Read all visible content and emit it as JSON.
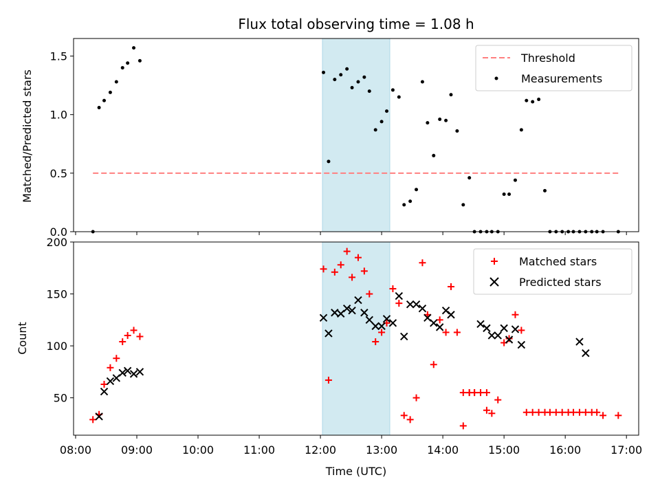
{
  "figure": {
    "title": "Flux total observing time = 1.08 h"
  },
  "colors": {
    "threshold": "#ff7f7f",
    "measurement": "#000000",
    "matched": "#ff0000",
    "predicted": "#000000",
    "highlight": "#add8e6"
  },
  "chart_data": [
    {
      "type": "scatter",
      "panel": "top",
      "title": "Flux total observing time = 1.08 h",
      "xlabel": "",
      "ylabel": "Matched/Predicted stars",
      "xlim": [
        "07:58",
        "17:12"
      ],
      "ylim": [
        0,
        1.65
      ],
      "yticks": [
        "0.0",
        "0.5",
        "1.0",
        "1.5"
      ],
      "xticks": [
        "08:00",
        "09:00",
        "10:00",
        "11:00",
        "12:00",
        "13:00",
        "14:00",
        "15:00",
        "16:00",
        "17:00"
      ],
      "legend": {
        "placement": "top-right",
        "entries": [
          "Threshold",
          "Measurements"
        ]
      },
      "highlight_span": [
        "12:02",
        "13:08"
      ],
      "threshold": {
        "name": "Threshold",
        "y": 0.5,
        "x": [
          "08:17",
          "16:52"
        ]
      },
      "series": [
        {
          "name": "Measurements",
          "x": [
            "08:17",
            "08:23",
            "08:28",
            "08:34",
            "08:40",
            "08:46",
            "08:51",
            "08:57",
            "09:03",
            "12:03",
            "12:08",
            "12:14",
            "12:20",
            "12:26",
            "12:31",
            "12:37",
            "12:43",
            "12:48",
            "12:54",
            "13:00",
            "13:05",
            "13:11",
            "13:17",
            "13:22",
            "13:28",
            "13:34",
            "13:40",
            "13:45",
            "13:51",
            "13:57",
            "14:03",
            "14:08",
            "14:14",
            "14:20",
            "14:26",
            "14:31",
            "14:37",
            "14:43",
            "14:48",
            "14:54",
            "15:00",
            "15:05",
            "15:11",
            "15:17",
            "15:22",
            "15:28",
            "15:34",
            "15:40",
            "15:45",
            "15:51",
            "15:57",
            "16:03",
            "16:08",
            "16:14",
            "16:20",
            "16:26",
            "16:31",
            "16:37",
            "16:52"
          ],
          "y": [
            0.0,
            1.06,
            1.12,
            1.19,
            1.28,
            1.4,
            1.44,
            1.57,
            1.46,
            1.36,
            0.6,
            1.3,
            1.34,
            1.39,
            1.23,
            1.28,
            1.32,
            1.2,
            0.87,
            0.94,
            1.03,
            1.21,
            1.15,
            0.23,
            0.26,
            0.36,
            1.28,
            0.93,
            0.65,
            0.96,
            0.95,
            1.17,
            0.86,
            0.23,
            0.46,
            0.0,
            0.0,
            0.0,
            0.0,
            0.0,
            0.32,
            0.32,
            0.44,
            0.87,
            1.12,
            1.11,
            1.13,
            0.35,
            0.0,
            0.0,
            0.0,
            0.0,
            0.0,
            0.0,
            0.0,
            0.0,
            0.0,
            0.0,
            0.0
          ]
        }
      ]
    },
    {
      "type": "scatter",
      "panel": "bottom",
      "xlabel": "Time (UTC)",
      "ylabel": "Count",
      "xlim": [
        "07:58",
        "17:12"
      ],
      "ylim": [
        14,
        200
      ],
      "yticks": [
        "50",
        "100",
        "150",
        "200"
      ],
      "xticks": [
        "08:00",
        "09:00",
        "10:00",
        "11:00",
        "12:00",
        "13:00",
        "14:00",
        "15:00",
        "16:00",
        "17:00"
      ],
      "legend": {
        "placement": "top-right",
        "entries": [
          "Matched stars",
          "Predicted stars"
        ]
      },
      "highlight_span": [
        "12:02",
        "13:08"
      ],
      "series": [
        {
          "name": "Matched stars",
          "marker": "+",
          "x": [
            "08:17",
            "08:23",
            "08:28",
            "08:34",
            "08:40",
            "08:46",
            "08:51",
            "08:57",
            "09:03",
            "12:03",
            "12:08",
            "12:14",
            "12:20",
            "12:26",
            "12:31",
            "12:37",
            "12:43",
            "12:48",
            "12:54",
            "13:00",
            "13:05",
            "13:11",
            "13:17",
            "13:22",
            "13:28",
            "13:34",
            "13:40",
            "13:45",
            "13:51",
            "13:57",
            "14:03",
            "14:08",
            "14:14",
            "14:20",
            "14:26",
            "14:31",
            "14:37",
            "14:43",
            "14:48",
            "14:54",
            "15:00",
            "15:05",
            "15:11",
            "15:17",
            "15:22",
            "15:28",
            "15:34",
            "15:40",
            "15:45",
            "15:51",
            "15:57",
            "16:03",
            "16:08",
            "16:14",
            "16:20",
            "16:26",
            "16:31",
            "16:37",
            "16:52",
            "14:20",
            "14:26",
            "14:31",
            "14:37",
            "14:43"
          ],
          "y": [
            29,
            34,
            63,
            79,
            88,
            104,
            110,
            115,
            109,
            174,
            67,
            171,
            178,
            191,
            166,
            185,
            172,
            150,
            104,
            113,
            122,
            155,
            141,
            33,
            29,
            50,
            180,
            130,
            82,
            125,
            113,
            157,
            113,
            23,
            55,
            55,
            55,
            38,
            35,
            48,
            103,
            107,
            130,
            115,
            36,
            36,
            36,
            36,
            36,
            36,
            36,
            36,
            36,
            36,
            36,
            36,
            36,
            33,
            33,
            55,
            55,
            55,
            55,
            55
          ]
        },
        {
          "name": "Predicted stars",
          "marker": "x",
          "x": [
            "08:23",
            "08:28",
            "08:34",
            "08:40",
            "08:46",
            "08:51",
            "08:57",
            "09:03",
            "12:03",
            "12:08",
            "12:14",
            "12:20",
            "12:26",
            "12:31",
            "12:37",
            "12:43",
            "12:48",
            "12:54",
            "13:00",
            "13:05",
            "13:11",
            "13:17",
            "13:22",
            "13:28",
            "13:34",
            "13:40",
            "13:45",
            "13:51",
            "13:57",
            "14:03",
            "14:08",
            "14:37",
            "14:43",
            "14:48",
            "14:54",
            "15:00",
            "15:05",
            "15:11",
            "15:17",
            "16:14",
            "16:20"
          ],
          "y": [
            32,
            56,
            66,
            69,
            74,
            76,
            73,
            75,
            127,
            112,
            132,
            131,
            136,
            134,
            144,
            132,
            125,
            119,
            119,
            126,
            122,
            148,
            109,
            140,
            140,
            136,
            127,
            122,
            118,
            134,
            130,
            121,
            117,
            110,
            110,
            117,
            106,
            116,
            101,
            104,
            93
          ]
        }
      ]
    }
  ]
}
